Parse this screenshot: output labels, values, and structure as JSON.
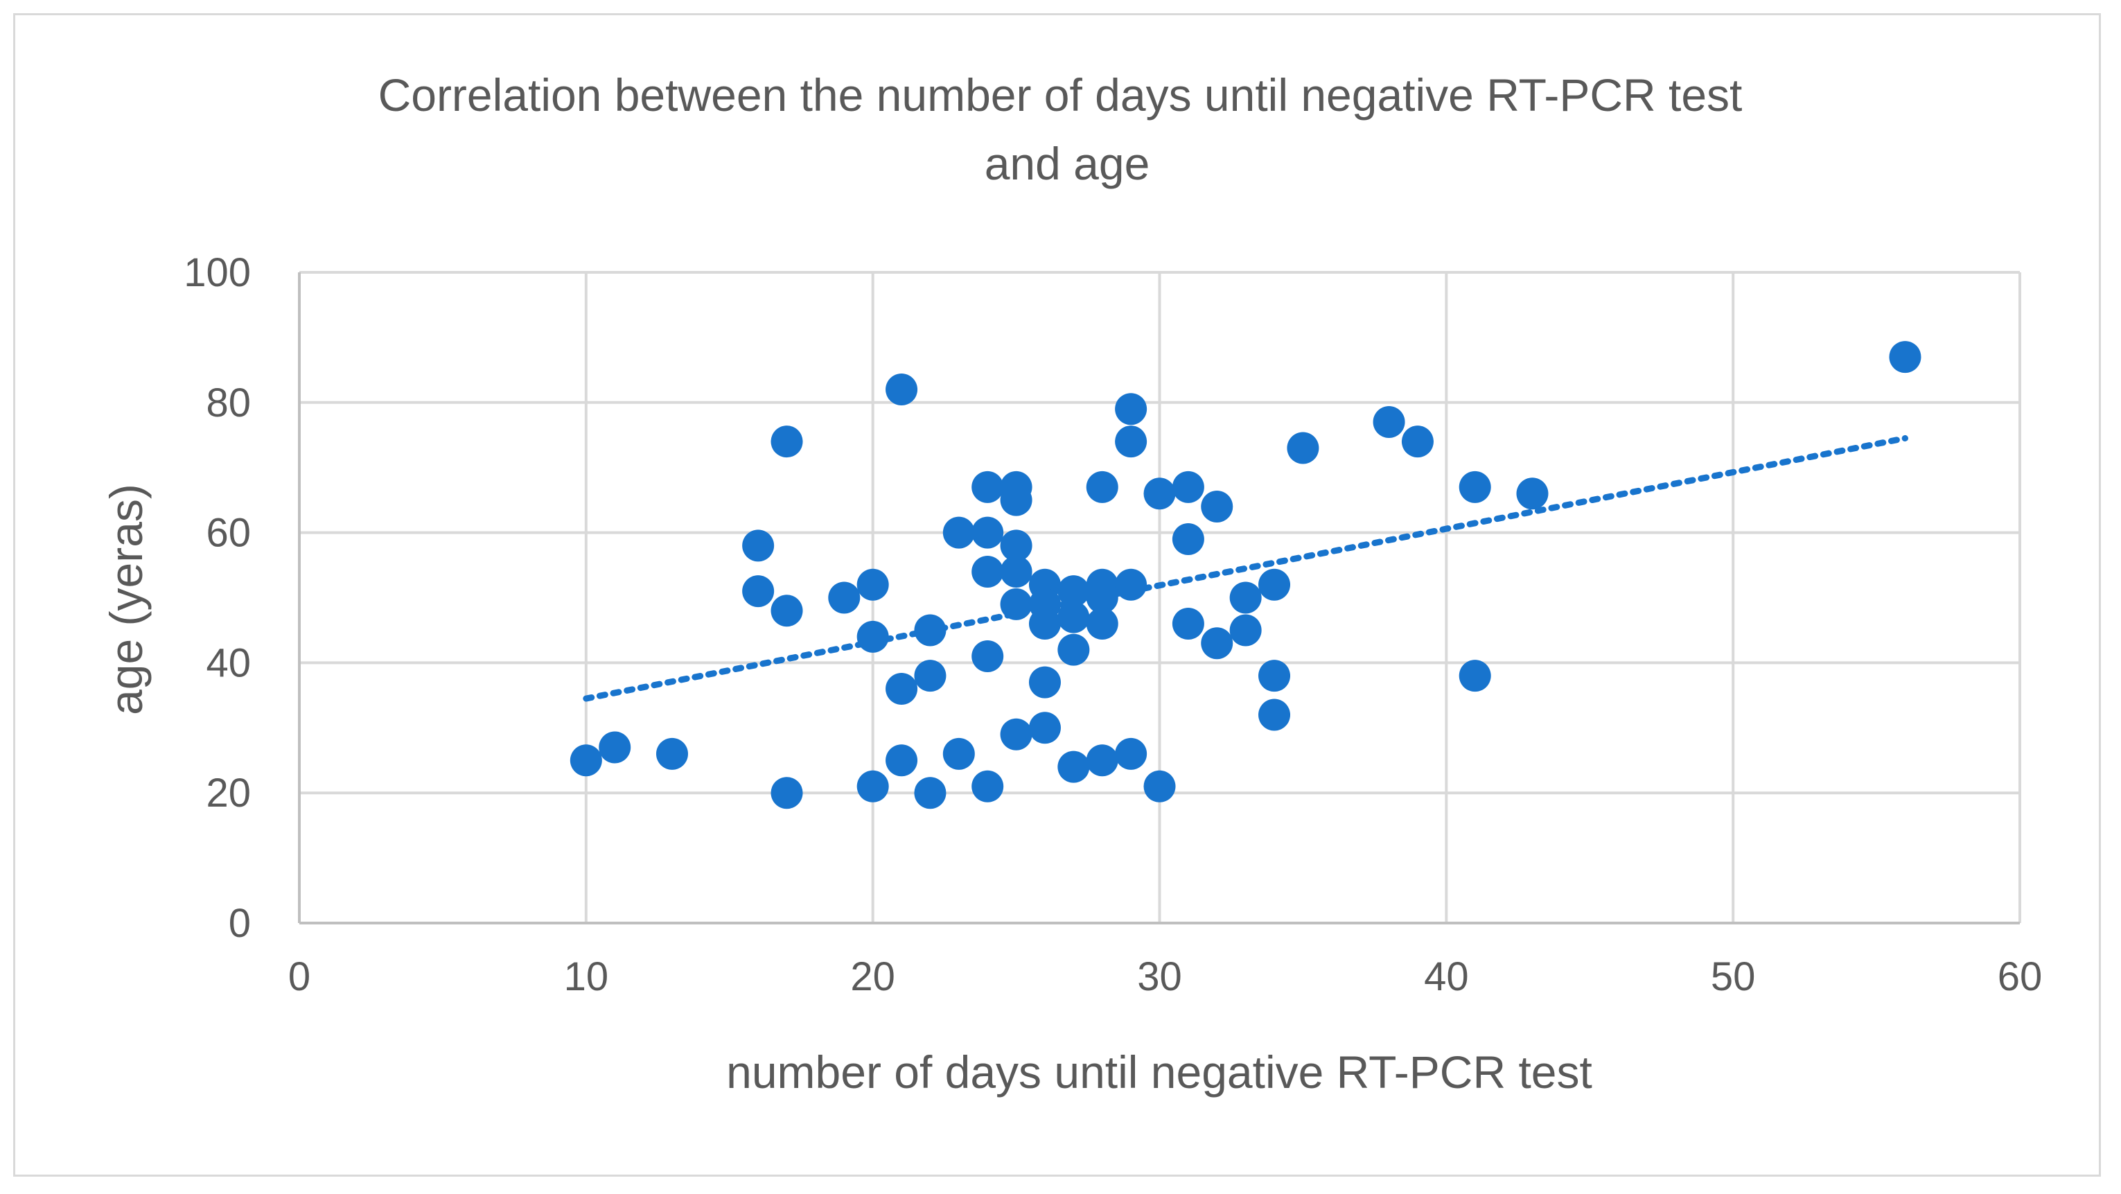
{
  "chart_data": {
    "type": "scatter",
    "title_line1": "Correlation between the number of days until negative RT-PCR test",
    "title_line2": "and age",
    "xlabel": "number of days until negative RT-PCR test",
    "ylabel": "age (yeras)",
    "xlim": [
      0,
      60
    ],
    "ylim": [
      0,
      100
    ],
    "xticks": [
      0,
      10,
      20,
      30,
      40,
      50,
      60
    ],
    "yticks": [
      0,
      20,
      40,
      60,
      80,
      100
    ],
    "grid": true,
    "marker_color": "#1874cd",
    "trendline": {
      "style": "dotted",
      "color": "#1874cd",
      "x": [
        10,
        56
      ],
      "y": [
        34.5,
        74.5
      ]
    },
    "points": [
      {
        "x": 10,
        "y": 25
      },
      {
        "x": 11,
        "y": 27
      },
      {
        "x": 13,
        "y": 26
      },
      {
        "x": 16,
        "y": 58
      },
      {
        "x": 16,
        "y": 51
      },
      {
        "x": 17,
        "y": 74
      },
      {
        "x": 17,
        "y": 48
      },
      {
        "x": 17,
        "y": 20
      },
      {
        "x": 19,
        "y": 50
      },
      {
        "x": 20,
        "y": 52
      },
      {
        "x": 20,
        "y": 44
      },
      {
        "x": 20,
        "y": 21
      },
      {
        "x": 21,
        "y": 82
      },
      {
        "x": 21,
        "y": 36
      },
      {
        "x": 21,
        "y": 25
      },
      {
        "x": 22,
        "y": 45
      },
      {
        "x": 22,
        "y": 38
      },
      {
        "x": 22,
        "y": 20
      },
      {
        "x": 23,
        "y": 60
      },
      {
        "x": 23,
        "y": 26
      },
      {
        "x": 24,
        "y": 67
      },
      {
        "x": 24,
        "y": 60
      },
      {
        "x": 24,
        "y": 54
      },
      {
        "x": 24,
        "y": 41
      },
      {
        "x": 24,
        "y": 21
      },
      {
        "x": 25,
        "y": 67
      },
      {
        "x": 25,
        "y": 65
      },
      {
        "x": 25,
        "y": 58
      },
      {
        "x": 25,
        "y": 54
      },
      {
        "x": 25,
        "y": 49
      },
      {
        "x": 25,
        "y": 29
      },
      {
        "x": 26,
        "y": 52
      },
      {
        "x": 26,
        "y": 49
      },
      {
        "x": 26,
        "y": 46
      },
      {
        "x": 26,
        "y": 37
      },
      {
        "x": 26,
        "y": 30
      },
      {
        "x": 27,
        "y": 51
      },
      {
        "x": 27,
        "y": 47
      },
      {
        "x": 27,
        "y": 42
      },
      {
        "x": 27,
        "y": 24
      },
      {
        "x": 28,
        "y": 67
      },
      {
        "x": 28,
        "y": 52
      },
      {
        "x": 28,
        "y": 50
      },
      {
        "x": 28,
        "y": 46
      },
      {
        "x": 28,
        "y": 25
      },
      {
        "x": 29,
        "y": 79
      },
      {
        "x": 29,
        "y": 74
      },
      {
        "x": 29,
        "y": 52
      },
      {
        "x": 29,
        "y": 26
      },
      {
        "x": 30,
        "y": 66
      },
      {
        "x": 30,
        "y": 21
      },
      {
        "x": 31,
        "y": 67
      },
      {
        "x": 31,
        "y": 59
      },
      {
        "x": 31,
        "y": 46
      },
      {
        "x": 32,
        "y": 64
      },
      {
        "x": 32,
        "y": 43
      },
      {
        "x": 33,
        "y": 50
      },
      {
        "x": 33,
        "y": 45
      },
      {
        "x": 34,
        "y": 52
      },
      {
        "x": 34,
        "y": 38
      },
      {
        "x": 34,
        "y": 32
      },
      {
        "x": 35,
        "y": 73
      },
      {
        "x": 38,
        "y": 77
      },
      {
        "x": 39,
        "y": 74
      },
      {
        "x": 41,
        "y": 67
      },
      {
        "x": 41,
        "y": 38
      },
      {
        "x": 43,
        "y": 66
      },
      {
        "x": 56,
        "y": 87
      }
    ]
  }
}
